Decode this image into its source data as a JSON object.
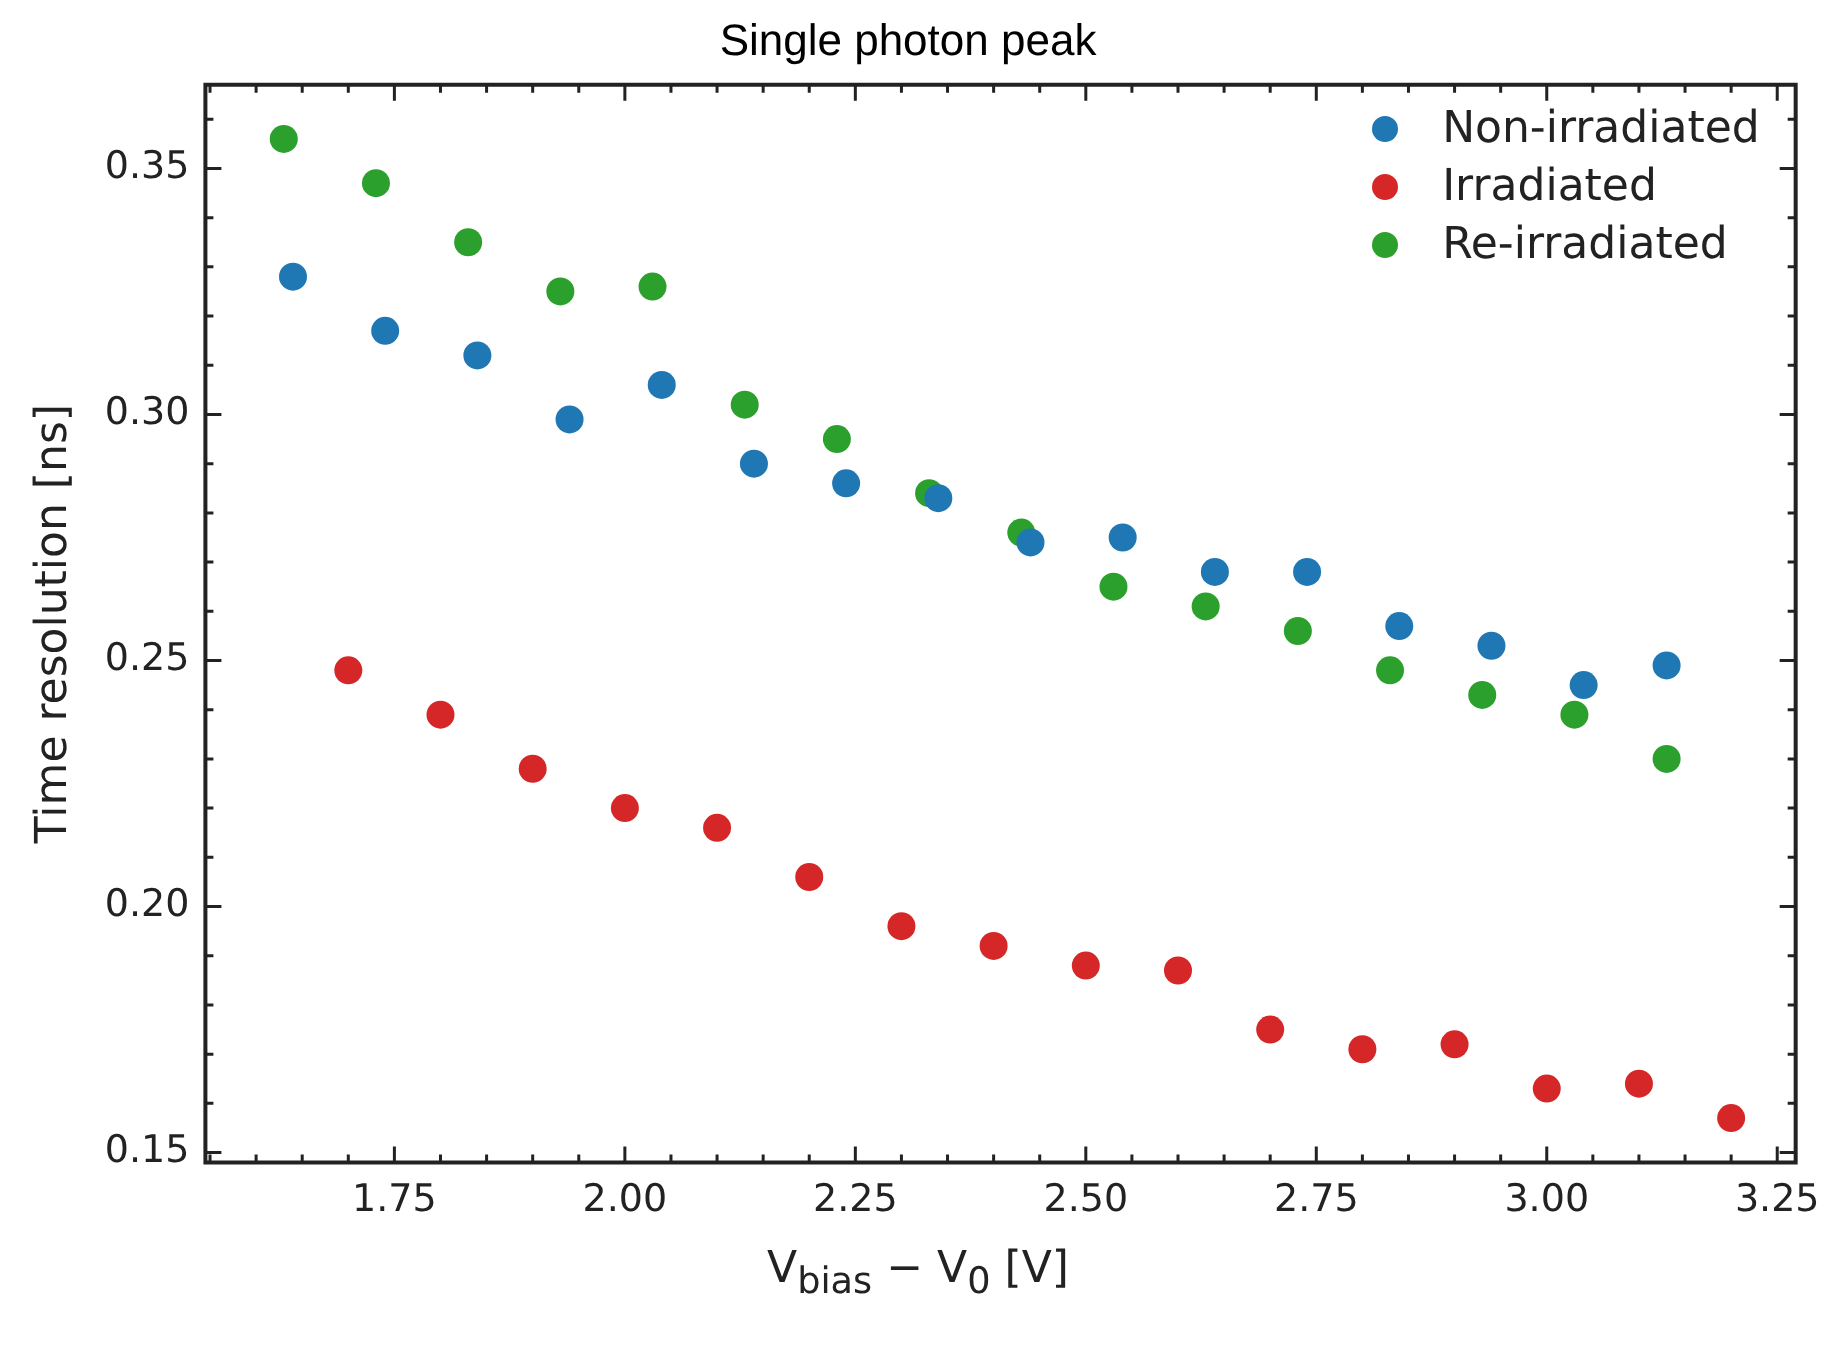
{
  "chart_data": {
    "type": "scatter",
    "title": "Single photon peak",
    "xlabel": "V$_{bias}$ − V$_{0}$ [V]",
    "ylabel": "Time resolution [ns]",
    "series": [
      {
        "name": "Non-irradiated",
        "color": "#1f77b4",
        "x": [
          1.64,
          1.74,
          1.84,
          1.94,
          2.04,
          2.14,
          2.24,
          2.34,
          2.44,
          2.54,
          2.64,
          2.74,
          2.84,
          2.94,
          3.04,
          3.13
        ],
        "values": [
          0.328,
          0.317,
          0.312,
          0.299,
          0.306,
          0.29,
          0.286,
          0.283,
          0.274,
          0.275,
          0.268,
          0.268,
          0.257,
          0.253,
          0.245,
          0.249
        ]
      },
      {
        "name": "Irradiated",
        "color": "#d62728",
        "x": [
          1.7,
          1.8,
          1.9,
          2.0,
          2.1,
          2.2,
          2.3,
          2.4,
          2.5,
          2.6,
          2.7,
          2.8,
          2.9,
          3.0,
          3.1,
          3.2
        ],
        "values": [
          0.248,
          0.239,
          0.228,
          0.22,
          0.216,
          0.206,
          0.196,
          0.192,
          0.188,
          0.187,
          0.175,
          0.171,
          0.172,
          0.163,
          0.164,
          0.157
        ]
      },
      {
        "name": "Re-irradiated",
        "color": "#2ca02c",
        "x": [
          1.63,
          1.73,
          1.83,
          1.93,
          2.03,
          2.13,
          2.23,
          2.33,
          2.43,
          2.53,
          2.63,
          2.73,
          2.83,
          2.93,
          3.03,
          3.13
        ],
        "values": [
          0.356,
          0.347,
          0.335,
          0.325,
          0.326,
          0.302,
          0.295,
          0.284,
          0.276,
          0.265,
          0.261,
          0.256,
          0.248,
          0.243,
          0.239,
          0.23
        ]
      }
    ],
    "xlim": [
      1.545,
      3.27
    ],
    "ylim": [
      0.148,
      0.367
    ],
    "xticks": [
      {
        "value": 1.55,
        "label": null
      },
      {
        "value": 1.6,
        "label": null
      },
      {
        "value": 1.65,
        "label": null
      },
      {
        "value": 1.7,
        "label": null
      },
      {
        "value": 1.75,
        "label": "1.75"
      },
      {
        "value": 1.8,
        "label": null
      },
      {
        "value": 1.85,
        "label": null
      },
      {
        "value": 1.9,
        "label": null
      },
      {
        "value": 1.95,
        "label": null
      },
      {
        "value": 2.0,
        "label": "2.00"
      },
      {
        "value": 2.05,
        "label": null
      },
      {
        "value": 2.1,
        "label": null
      },
      {
        "value": 2.15,
        "label": null
      },
      {
        "value": 2.2,
        "label": null
      },
      {
        "value": 2.25,
        "label": "2.25"
      },
      {
        "value": 2.3,
        "label": null
      },
      {
        "value": 2.35,
        "label": null
      },
      {
        "value": 2.4,
        "label": null
      },
      {
        "value": 2.45,
        "label": null
      },
      {
        "value": 2.5,
        "label": "2.50"
      },
      {
        "value": 2.55,
        "label": null
      },
      {
        "value": 2.6,
        "label": null
      },
      {
        "value": 2.65,
        "label": null
      },
      {
        "value": 2.7,
        "label": null
      },
      {
        "value": 2.75,
        "label": "2.75"
      },
      {
        "value": 2.8,
        "label": null
      },
      {
        "value": 2.85,
        "label": null
      },
      {
        "value": 2.9,
        "label": null
      },
      {
        "value": 2.95,
        "label": null
      },
      {
        "value": 3.0,
        "label": "3.00"
      },
      {
        "value": 3.05,
        "label": null
      },
      {
        "value": 3.1,
        "label": null
      },
      {
        "value": 3.15,
        "label": null
      },
      {
        "value": 3.2,
        "label": null
      },
      {
        "value": 3.25,
        "label": "3.25"
      }
    ],
    "yticks": [
      {
        "value": 0.15,
        "label": "0.15"
      },
      {
        "value": 0.16,
        "label": null
      },
      {
        "value": 0.17,
        "label": null
      },
      {
        "value": 0.18,
        "label": null
      },
      {
        "value": 0.19,
        "label": null
      },
      {
        "value": 0.2,
        "label": "0.20"
      },
      {
        "value": 0.21,
        "label": null
      },
      {
        "value": 0.22,
        "label": null
      },
      {
        "value": 0.23,
        "label": null
      },
      {
        "value": 0.24,
        "label": null
      },
      {
        "value": 0.25,
        "label": "0.25"
      },
      {
        "value": 0.26,
        "label": null
      },
      {
        "value": 0.27,
        "label": null
      },
      {
        "value": 0.28,
        "label": null
      },
      {
        "value": 0.29,
        "label": null
      },
      {
        "value": 0.3,
        "label": "0.30"
      },
      {
        "value": 0.31,
        "label": null
      },
      {
        "value": 0.32,
        "label": null
      },
      {
        "value": 0.33,
        "label": null
      },
      {
        "value": 0.34,
        "label": null
      },
      {
        "value": 0.35,
        "label": "0.35"
      },
      {
        "value": 0.36,
        "label": null
      }
    ],
    "grid": false,
    "legend": "top right",
    "marker": "circle"
  }
}
